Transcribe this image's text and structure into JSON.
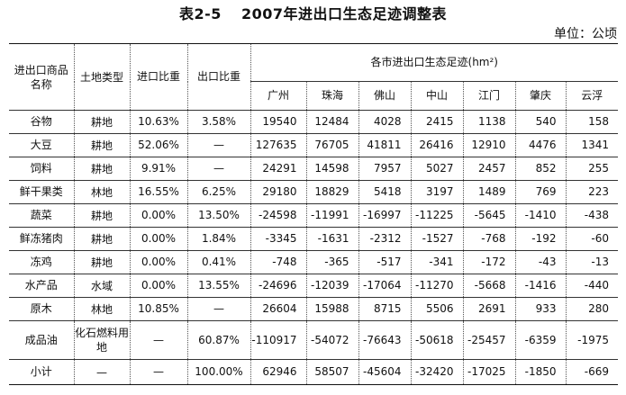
{
  "title": {
    "number": "表2-5",
    "text": "2007年进出口生态足迹调整表"
  },
  "unit": "单位：公顷",
  "table": {
    "headers": {
      "product": "进出口商品名称",
      "land_type": "土地类型",
      "import_ratio": "进口比重",
      "export_ratio": "出口比重",
      "group": "各市进出口生态足迹(hm²)",
      "cities": [
        "广州",
        "珠海",
        "佛山",
        "中山",
        "江门",
        "肇庆",
        "云浮"
      ]
    },
    "rows": [
      {
        "name": "谷物",
        "land": "耕地",
        "imp": "10.63%",
        "exp": "3.58%",
        "values": [
          "19540",
          "12484",
          "4028",
          "2415",
          "1138",
          "540",
          "158"
        ]
      },
      {
        "name": "大豆",
        "land": "耕地",
        "imp": "52.06%",
        "exp": "—",
        "values": [
          "127635",
          "76705",
          "41811",
          "26416",
          "12910",
          "4476",
          "1341"
        ]
      },
      {
        "name": "饲料",
        "land": "耕地",
        "imp": "9.91%",
        "exp": "—",
        "values": [
          "24291",
          "14598",
          "7957",
          "5027",
          "2457",
          "852",
          "255"
        ]
      },
      {
        "name": "鲜干果类",
        "land": "林地",
        "imp": "16.55%",
        "exp": "6.25%",
        "values": [
          "29180",
          "18829",
          "5418",
          "3197",
          "1489",
          "769",
          "223"
        ]
      },
      {
        "name": "蔬菜",
        "land": "耕地",
        "imp": "0.00%",
        "exp": "13.50%",
        "values": [
          "-24598",
          "-11991",
          "-16997",
          "-11225",
          "-5645",
          "-1410",
          "-438"
        ]
      },
      {
        "name": "鲜冻猪肉",
        "land": "耕地",
        "imp": "0.00%",
        "exp": "1.84%",
        "values": [
          "-3345",
          "-1631",
          "-2312",
          "-1527",
          "-768",
          "-192",
          "-60"
        ]
      },
      {
        "name": "冻鸡",
        "land": "耕地",
        "imp": "0.00%",
        "exp": "0.41%",
        "values": [
          "-748",
          "-365",
          "-517",
          "-341",
          "-172",
          "-43",
          "-13"
        ]
      },
      {
        "name": "水产品",
        "land": "水域",
        "imp": "0.00%",
        "exp": "13.55%",
        "values": [
          "-24696",
          "-12039",
          "-17064",
          "-11270",
          "-5668",
          "-1416",
          "-440"
        ]
      },
      {
        "name": "原木",
        "land": "林地",
        "imp": "10.85%",
        "exp": "—",
        "values": [
          "26604",
          "15988",
          "8715",
          "5506",
          "2691",
          "933",
          "280"
        ]
      },
      {
        "name": "成品油",
        "land": "化石燃料用地",
        "imp": "—",
        "exp": "60.87%",
        "values": [
          "-110917",
          "-54072",
          "-76643",
          "-50618",
          "-25457",
          "-6359",
          "-1975"
        ]
      }
    ],
    "total": {
      "name": "小计",
      "land": "—",
      "imp": "—",
      "exp": "100.00%",
      "values": [
        "62946",
        "58507",
        "-45604",
        "-32420",
        "-17025",
        "-1850",
        "-669"
      ]
    }
  }
}
